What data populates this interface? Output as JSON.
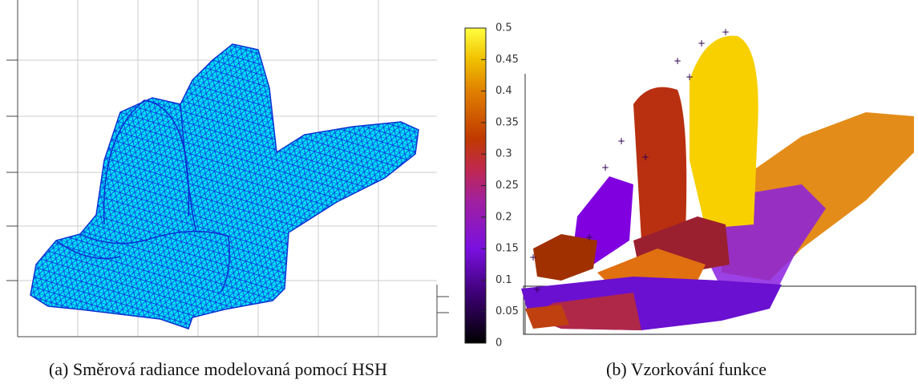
{
  "figures": [
    {
      "caption": "(a) Směrová radiance modelovaná pomocí HSH"
    },
    {
      "caption": "(b) Vzorkování funkce",
      "colorbar": {
        "lim": [
          0,
          0.5
        ],
        "ticks": [
          0,
          0.05,
          0.1,
          0.15,
          0.2,
          0.25,
          0.3,
          0.35,
          0.4,
          0.45,
          0.5
        ]
      }
    }
  ]
}
